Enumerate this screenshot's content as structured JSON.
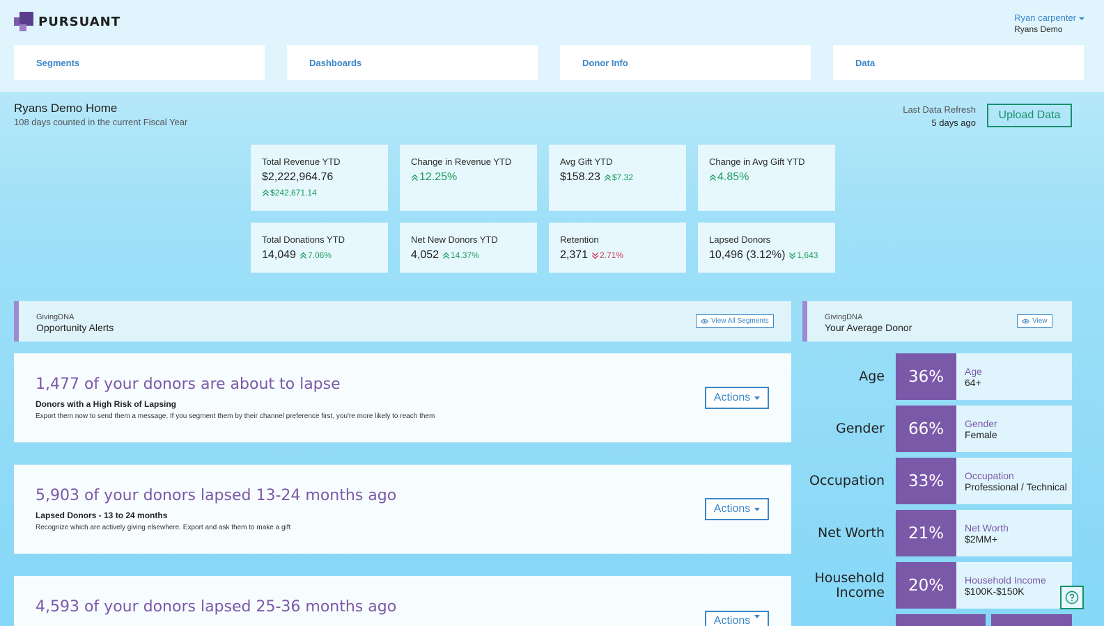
{
  "brand": {
    "name": "PURSUANT",
    "colors": {
      "purple": "#7b59a9",
      "blue": "#3a86c8",
      "green": "#17906b",
      "red": "#d9304f"
    }
  },
  "user": {
    "name": "Ryan carpenter",
    "org": "Ryans Demo"
  },
  "nav": [
    {
      "label": "Segments"
    },
    {
      "label": "Dashboards"
    },
    {
      "label": "Donor Info"
    },
    {
      "label": "Data"
    }
  ],
  "home": {
    "title": "Ryans Demo Home",
    "subtitle": "108 days counted in the current Fiscal Year"
  },
  "refresh": {
    "label": "Last Data Refresh",
    "value": "5 days ago",
    "upload_label": "Upload Data"
  },
  "stats": [
    {
      "label": "Total Revenue YTD",
      "value": "$2,222,964.76",
      "delta": "$242,671.14",
      "direction": "up",
      "delta_position": "below"
    },
    {
      "label": "Change in Revenue YTD",
      "value": "",
      "delta": "12.25%",
      "direction": "up",
      "delta_position": "big"
    },
    {
      "label": "Avg Gift YTD",
      "value": "$158.23",
      "delta": "$7.32",
      "direction": "up",
      "delta_position": "inline"
    },
    {
      "label": "Change in Avg Gift YTD",
      "value": "",
      "delta": "4.85%",
      "direction": "up",
      "delta_position": "big"
    },
    {
      "label": "Total Donations YTD",
      "value": "14,049",
      "delta": "7.06%",
      "direction": "up",
      "delta_position": "inline"
    },
    {
      "label": "Net New Donors YTD",
      "value": "4,052",
      "delta": "14.37%",
      "direction": "up",
      "delta_position": "inline"
    },
    {
      "label": "Retention",
      "value": "2,371",
      "delta": "2.71%",
      "direction": "down",
      "delta_position": "inline"
    },
    {
      "label": "Lapsed Donors",
      "value": "10,496 (3.12%)",
      "delta": "1,643",
      "direction": "down-green",
      "delta_position": "inline"
    }
  ],
  "opportunity": {
    "kicker": "GivingDNA",
    "title": "Opportunity Alerts",
    "button": "View All Segments"
  },
  "average_donor": {
    "kicker": "GivingDNA",
    "title": "Your Average Donor",
    "button": "View"
  },
  "alerts": [
    {
      "headline": "1,477 of your donors are about to lapse",
      "subtitle": "Donors with a High Risk of Lapsing",
      "description": "Export them now to send them a message. If you segment them by their channel preference first, you're more likely to reach them",
      "action": "Actions"
    },
    {
      "headline": "5,903 of your donors lapsed 13-24 months ago",
      "subtitle": "Lapsed Donors - 13 to 24 months",
      "description": "Recognize which are actively giving elsewhere. Export and ask them to make a gift",
      "action": "Actions"
    },
    {
      "headline": "4,593 of your donors lapsed 25-36 months ago",
      "subtitle": "",
      "description": "",
      "action": "Actions"
    }
  ],
  "donor_profile": [
    {
      "label": "Age",
      "percent": "36%",
      "key": "Age",
      "value": "64+"
    },
    {
      "label": "Gender",
      "percent": "66%",
      "key": "Gender",
      "value": "Female"
    },
    {
      "label": "Occupation",
      "percent": "33%",
      "key": "Occupation",
      "value": "Professional / Technical"
    },
    {
      "label": "Net Worth",
      "percent": "21%",
      "key": "Net Worth",
      "value": "$2MM+"
    },
    {
      "label": "Household Income",
      "percent": "20%",
      "key": "Household Income",
      "value": "$100K-$150K"
    }
  ],
  "icons": {
    "logo": "pursuant-logo-icon",
    "eye": "eye-icon",
    "help": "help-circle-icon",
    "up": "double-chevron-up-icon",
    "down": "double-chevron-down-icon"
  }
}
